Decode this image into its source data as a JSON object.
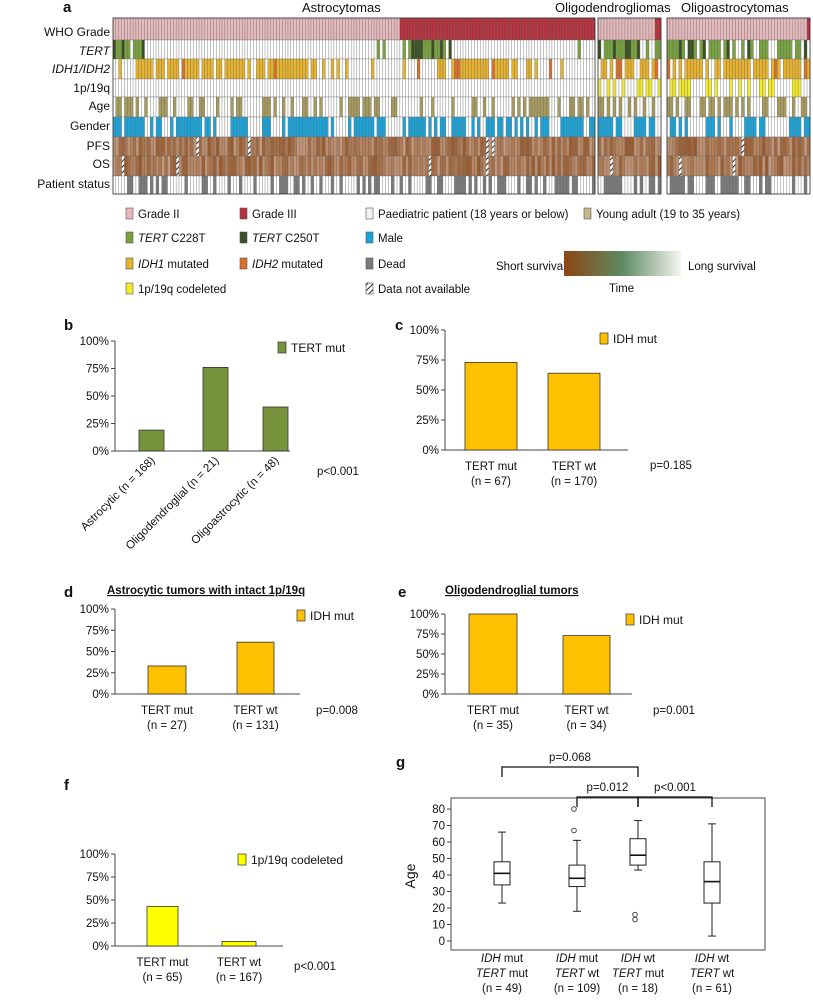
{
  "panel_labels": {
    "a": "a",
    "b": "b",
    "c": "c",
    "d": "d",
    "e": "e",
    "f": "f",
    "g": "g"
  },
  "heatmap": {
    "groups": [
      {
        "name": "Astrocytomas",
        "n": 168
      },
      {
        "name": "Oligodendrogliomas",
        "n": 21
      },
      {
        "name": "Oligoastrocytomas",
        "n": 48
      }
    ],
    "rows": [
      {
        "label": "WHO Grade",
        "italic": false
      },
      {
        "label": "TERT",
        "italic": true
      },
      {
        "label": "IDH1/IDH2",
        "italic": true
      },
      {
        "label": "1p/19q",
        "italic": false
      },
      {
        "label": "Age",
        "italic": false
      },
      {
        "label": "Gender",
        "italic": false
      },
      {
        "label": "PFS",
        "italic": false
      },
      {
        "label": "OS",
        "italic": false
      },
      {
        "label": "Patient status",
        "italic": false
      }
    ],
    "legend": [
      {
        "label": "Grade II",
        "color": "#e6b9bc"
      },
      {
        "label": "Grade III",
        "color": "#b5303a"
      },
      {
        "label": "Paediatric patient (18 years or below)",
        "color": "#f2f2f2"
      },
      {
        "label": "Young adult (19 to 35 years)",
        "color": "#c2b88c"
      },
      {
        "gene": "TERT",
        "label": " C228T",
        "color": "#77a23e"
      },
      {
        "gene": "TERT",
        "label": " C250T",
        "color": "#3a4f22"
      },
      {
        "label": "Male",
        "color": "#1aa3d9"
      },
      {
        "gene": "IDH1",
        "label": " mutated",
        "color": "#e7b22c"
      },
      {
        "gene": "IDH2",
        "label": " mutated",
        "color": "#d8702c"
      },
      {
        "label": "Dead",
        "color": "#7a7a7a"
      },
      {
        "label": "1p/19q codeleted",
        "color": "#f2ea2a"
      },
      {
        "label": "Data not available",
        "color": "hatch"
      }
    ],
    "survival_legend": {
      "short": "Short survival",
      "long": "Long survival",
      "time": "Time"
    },
    "colors": {
      "grade2": "#e6b9bc",
      "grade3": "#b5303a",
      "c228t": "#77a23e",
      "c250t": "#3a4f22",
      "idh1": "#e7b22c",
      "idh2": "#d8702c",
      "codel": "#f2ea2a",
      "young": "#a89a5c",
      "male": "#1aa3d9",
      "dead": "#7a7a7a",
      "short": "#8b4513",
      "long": "#f5f5f0"
    }
  },
  "chart_data": [
    {
      "id": "b",
      "type": "bar",
      "categories": [
        "Astrocytic (n = 168)",
        "Oligodendroglial (n = 21)",
        "Oligoastrocytic (n = 48)"
      ],
      "values": [
        19,
        76,
        40
      ],
      "legend": "TERT mut",
      "color": "#77933c",
      "yticks": [
        "0%",
        "25%",
        "50%",
        "75%",
        "100%"
      ],
      "ylim": [
        0,
        100
      ],
      "pvalue": "p<0.001"
    },
    {
      "id": "c",
      "type": "bar",
      "categories": [
        [
          "TERT mut",
          "(n = 67)"
        ],
        [
          "TERT wt",
          "(n = 170)"
        ]
      ],
      "values": [
        73,
        64
      ],
      "legend": "IDH mut",
      "color": "#ffc000",
      "yticks": [
        "0%",
        "25%",
        "50%",
        "75%",
        "100%"
      ],
      "ylim": [
        0,
        100
      ],
      "pvalue": "p=0.185"
    },
    {
      "id": "d",
      "type": "bar",
      "title": "Astrocytic tumors with intact 1p/19q",
      "categories": [
        [
          "TERT mut",
          "(n = 27)"
        ],
        [
          "TERT wt",
          "(n = 131)"
        ]
      ],
      "values": [
        33,
        61
      ],
      "legend": "IDH mut",
      "color": "#ffc000",
      "yticks": [
        "0%",
        "25%",
        "50%",
        "75%",
        "100%"
      ],
      "ylim": [
        0,
        100
      ],
      "pvalue": "p=0.008"
    },
    {
      "id": "e",
      "type": "bar",
      "title": "Oligodendroglial tumors",
      "categories": [
        [
          "TERT mut",
          "(n = 35)"
        ],
        [
          "TERT wt",
          "(n = 34)"
        ]
      ],
      "values": [
        100,
        73
      ],
      "legend": "IDH mut",
      "color": "#ffc000",
      "yticks": [
        "0%",
        "25%",
        "50%",
        "75%",
        "100%"
      ],
      "ylim": [
        0,
        100
      ],
      "pvalue": "p=0.001"
    },
    {
      "id": "f",
      "type": "bar",
      "categories": [
        [
          "TERT mut",
          "(n = 65)"
        ],
        [
          "TERT wt",
          "(n = 167)"
        ]
      ],
      "values": [
        43,
        5
      ],
      "legend": "1p/19q codeleted",
      "color": "#ffff00",
      "yticks": [
        "0%",
        "25%",
        "50%",
        "75%",
        "100%"
      ],
      "ylim": [
        0,
        100
      ],
      "pvalue": "p<0.001"
    },
    {
      "id": "g",
      "type": "box",
      "ylabel": "Age",
      "yticks": [
        "0",
        "10",
        "20",
        "30",
        "40",
        "50",
        "60",
        "70",
        "80"
      ],
      "ylim": [
        0,
        80
      ],
      "groups": [
        {
          "l1": "IDH",
          "l1b": " mut",
          "l2": "TERT",
          "l2b": " mut",
          "n": "(n = 49)",
          "min": 23,
          "q1": 34,
          "med": 41,
          "q3": 48,
          "max": 66,
          "outliers": []
        },
        {
          "l1": "IDH",
          "l1b": " mut",
          "l2": "TERT",
          "l2b": " wt",
          "n": "(n = 109)",
          "min": 18,
          "q1": 33,
          "med": 38,
          "q3": 46,
          "max": 61,
          "outliers": [
            67,
            80
          ]
        },
        {
          "l1": "IDH",
          "l1b": " wt",
          "l2": "TERT",
          "l2b": " mut",
          "n": "(n = 18)",
          "min": 43,
          "q1": 46,
          "med": 52,
          "q3": 62,
          "max": 73,
          "outliers": [
            13,
            16
          ]
        },
        {
          "l1": "IDH",
          "l1b": " wt",
          "l2": "TERT",
          "l2b": " wt",
          "n": "(n = 61)",
          "min": 3,
          "q1": 23,
          "med": 36,
          "q3": 48,
          "max": 71,
          "outliers": []
        }
      ],
      "comparisons": [
        {
          "from": 0,
          "to": 2,
          "label": "p=0.068",
          "level": 0
        },
        {
          "from": 1,
          "to": 2,
          "label": "p=0.012",
          "level": 1
        },
        {
          "from": 2,
          "to": 3,
          "label": "p<0.001",
          "level": 1
        }
      ]
    }
  ]
}
